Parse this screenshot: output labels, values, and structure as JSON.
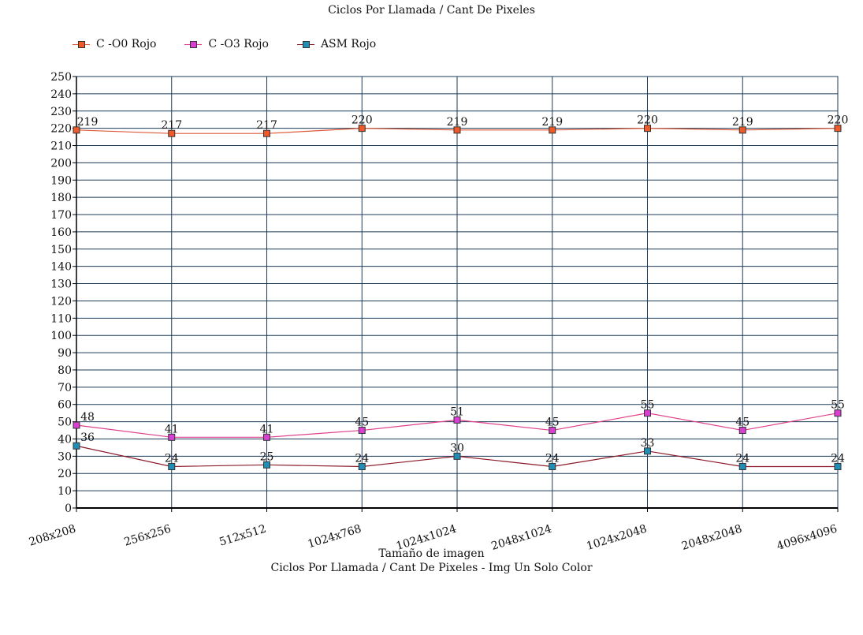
{
  "chart_data": {
    "type": "line",
    "title": "Ciclos Por Llamada / Cant De Pixeles",
    "xlabel": "Tamaño de imagen",
    "subtitle": "Ciclos Por Llamada / Cant De Pixeles - Img Un Solo Color",
    "ylabel": "",
    "categories": [
      "208x208",
      "256x256",
      "512x512",
      "1024x768",
      "1024x1024",
      "2048x1024",
      "1024x2048",
      "2048x2048",
      "4096x4096"
    ],
    "ylim": [
      0,
      250
    ],
    "yticks": [
      0,
      10,
      20,
      30,
      40,
      50,
      60,
      70,
      80,
      90,
      100,
      110,
      120,
      130,
      140,
      150,
      160,
      170,
      180,
      190,
      200,
      210,
      220,
      230,
      240,
      250
    ],
    "grid": true,
    "legend_position": "top-left",
    "series": [
      {
        "name": "C -O0 Rojo",
        "color": "#ef5a28",
        "line_color": "#e05a3a",
        "values": [
          219,
          217,
          217,
          220,
          219,
          219,
          220,
          219,
          220
        ]
      },
      {
        "name": "C -O3 Rojo",
        "color": "#d83fd2",
        "line_color": "#e0408a",
        "values": [
          48,
          41,
          41,
          45,
          51,
          45,
          55,
          45,
          55
        ]
      },
      {
        "name": "ASM Rojo",
        "color": "#1f8fb8",
        "line_color": "#8b1a2a",
        "values": [
          36,
          24,
          25,
          24,
          30,
          24,
          33,
          24,
          24
        ]
      }
    ]
  }
}
